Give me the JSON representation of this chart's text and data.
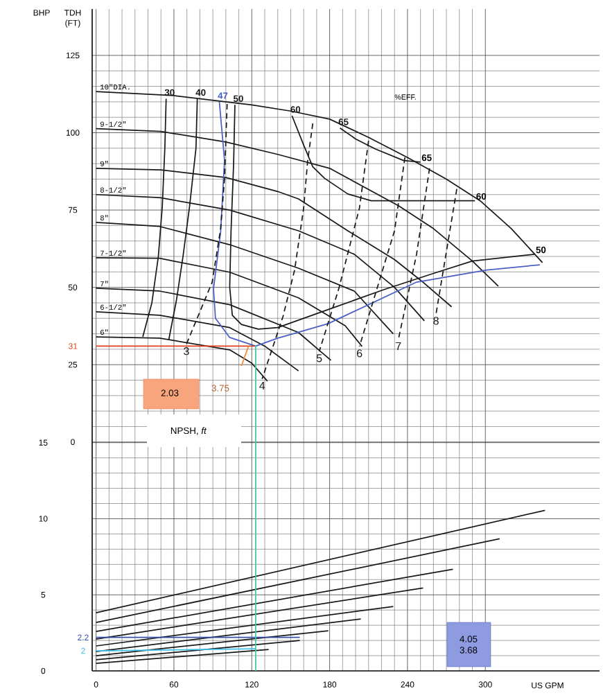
{
  "chart_data": {
    "type": "line",
    "xlabel": "US GPM",
    "ylabel": "TDH (FT)",
    "y2label": "BHP",
    "xlim": [
      -3,
      388
    ],
    "xticks": [
      0,
      60,
      120,
      180,
      240,
      300
    ],
    "ylim": [
      -74,
      140
    ],
    "yticks": [
      0,
      25,
      50,
      75,
      100,
      125
    ],
    "y2lim": [
      0,
      43.5
    ],
    "y2ticks": [
      0,
      5,
      10,
      15
    ],
    "grid": true,
    "series": [
      {
        "name": "10\"DIA.",
        "color": "#1a1a1a",
        "x": [
          0,
          60,
          120,
          150,
          180,
          210,
          240,
          270,
          296,
          320,
          344
        ],
        "values": [
          113.3,
          112,
          109,
          107,
          104.4,
          98.5,
          92,
          85,
          78,
          69,
          58
        ]
      },
      {
        "name": "9-1/2\"",
        "color": "#1a1a1a",
        "x": [
          0,
          50,
          100,
          140,
          180,
          233,
          260,
          290,
          310
        ],
        "values": [
          101.3,
          100.4,
          97,
          93,
          88.5,
          76.4,
          69,
          58.5,
          50.4
        ]
      },
      {
        "name": "9\"",
        "color": "#1a1a1a",
        "x": [
          0,
          50,
          100,
          140,
          156,
          194,
          230,
          251,
          274
        ],
        "values": [
          88.5,
          88,
          85.5,
          81,
          78.6,
          68.3,
          59,
          52,
          43.7
        ]
      },
      {
        "name": "8-1/2\"",
        "color": "#1a1a1a",
        "x": [
          0,
          49,
          103,
          156,
          199,
          230,
          253
        ],
        "values": [
          80,
          79,
          75,
          68.3,
          60.7,
          50,
          39.2
        ]
      },
      {
        "name": "8\"",
        "color": "#1a1a1a",
        "x": [
          0,
          49,
          103,
          156,
          199,
          229
        ],
        "values": [
          71,
          69.7,
          63.8,
          56.2,
          48.8,
          35
        ]
      },
      {
        "name": "7-1/2\"",
        "color": "#1a1a1a",
        "x": [
          0,
          49,
          103,
          156,
          192,
          205
        ],
        "values": [
          59.6,
          59.4,
          54.9,
          46.6,
          37.6,
          30.9
        ]
      },
      {
        "name": "7\"",
        "color": "#1a1a1a",
        "x": [
          0,
          49,
          103,
          156,
          181
        ],
        "values": [
          49.7,
          48.8,
          44.4,
          35.4,
          26.4
        ]
      },
      {
        "name": "6-1/2\"",
        "color": "#1a1a1a",
        "x": [
          0,
          49,
          103,
          130,
          156
        ],
        "values": [
          42.1,
          41,
          37,
          31,
          23
        ]
      },
      {
        "name": "6\"",
        "color": "#1a1a1a",
        "x": [
          0,
          49,
          103,
          120,
          132
        ],
        "values": [
          34,
          33.6,
          29.8,
          25.5,
          19.7
        ]
      },
      {
        "name": "30",
        "color": "#1a1a1a",
        "x": [
          54,
          53,
          51,
          48,
          43,
          36
        ],
        "values": [
          111,
          95,
          76,
          60,
          45,
          34
        ]
      },
      {
        "name": "40",
        "color": "#1a1a1a",
        "x": [
          78,
          77,
          72,
          67,
          62,
          56
        ],
        "values": [
          111,
          95,
          76,
          60,
          46,
          33
        ]
      },
      {
        "name": "50",
        "color": "#1a1a1a",
        "x": [
          107,
          106,
          104,
          103,
          105,
          112,
          125,
          140,
          180,
          222,
          260,
          290,
          338
        ],
        "values": [
          109,
          90,
          68,
          50,
          41,
          38,
          36.5,
          37,
          43,
          49.3,
          54.5,
          58.5,
          60.7
        ]
      },
      {
        "name": "60",
        "color": "#1a1a1a",
        "x": [
          151,
          160,
          167,
          176,
          194,
          212,
          250,
          292
        ],
        "values": [
          105.5,
          96,
          89,
          85.3,
          80.2,
          78,
          78,
          78
        ]
      },
      {
        "name": "65",
        "color": "#1a1a1a",
        "x": [
          188,
          200,
          215,
          237,
          250
        ],
        "values": [
          101.5,
          98,
          94.8,
          91,
          90.5
        ]
      },
      {
        "name": "47",
        "color": "#4a5fc4",
        "x": [
          95,
          99,
          96,
          90.5,
          92,
          103,
          123,
          140,
          156,
          179,
          247,
          301,
          342
        ],
        "values": [
          110,
          91,
          68,
          49.5,
          40,
          33.8,
          31,
          33.6,
          35.5,
          38.3,
          51.7,
          55.6,
          57.3
        ]
      },
      {
        "name": "3",
        "color": "#1a1a1a",
        "line_style": "dashed",
        "x": [
          101,
          99,
          96,
          89.5,
          69.6
        ],
        "values": [
          109.3,
          85.3,
          69,
          51.7,
          31.6
        ]
      },
      {
        "name": "4",
        "color": "#1a1a1a",
        "line_style": "dashed",
        "x": [
          167,
          163,
          160,
          153,
          144,
          128
        ],
        "values": [
          103,
          90.7,
          75.7,
          55.6,
          40.5,
          20.4
        ]
      },
      {
        "name": "5",
        "color": "#1a1a1a",
        "line_style": "dashed",
        "x": [
          210,
          203,
          187,
          172
        ],
        "values": [
          97.4,
          75.7,
          49.5,
          29.3
        ]
      },
      {
        "name": "6",
        "color": "#1a1a1a",
        "line_style": "dashed",
        "x": [
          238,
          230,
          203
        ],
        "values": [
          92,
          68.3,
          30.9
        ]
      },
      {
        "name": "7",
        "color": "#1a1a1a",
        "line_style": "dashed",
        "x": [
          257,
          247,
          233
        ],
        "values": [
          88.5,
          60.7,
          33.2
        ]
      },
      {
        "name": "8",
        "color": "#1a1a1a",
        "line_style": "dashed",
        "x": [
          278,
          262
        ],
        "values": [
          81.8,
          41.4
        ]
      },
      {
        "name": "31",
        "color": "#e0401a",
        "x": [
          0,
          123
        ],
        "values": [
          31,
          31
        ]
      },
      {
        "color": "#f08a30",
        "x": [
          117.5,
          112
        ],
        "values": [
          31,
          24.6
        ]
      },
      {
        "axis": "y2",
        "color": "#1a1a1a",
        "x": [
          0,
          346
        ],
        "values": [
          3.82,
          10.55
        ]
      },
      {
        "axis": "y2",
        "color": "#1a1a1a",
        "x": [
          0,
          311
        ],
        "values": [
          3.18,
          8.68
        ]
      },
      {
        "axis": "y2",
        "color": "#1a1a1a",
        "x": [
          0,
          275
        ],
        "values": [
          2.59,
          6.68
        ]
      },
      {
        "axis": "y2",
        "color": "#1a1a1a",
        "x": [
          0,
          252
        ],
        "values": [
          2.09,
          5.45
        ]
      },
      {
        "axis": "y2",
        "color": "#1a1a1a",
        "x": [
          0,
          229
        ],
        "values": [
          1.64,
          4.23
        ]
      },
      {
        "axis": "y2",
        "color": "#1a1a1a",
        "x": [
          0,
          204
        ],
        "values": [
          1.27,
          3.41
        ]
      },
      {
        "axis": "y2",
        "color": "#1a1a1a",
        "x": [
          0,
          179
        ],
        "values": [
          1.0,
          2.64
        ]
      },
      {
        "axis": "y2",
        "color": "#1a1a1a",
        "x": [
          0,
          157
        ],
        "values": [
          0.73,
          2.0
        ]
      },
      {
        "axis": "y2",
        "color": "#1a1a1a",
        "x": [
          0,
          133
        ],
        "values": [
          0.5,
          1.41
        ]
      },
      {
        "axis": "y2",
        "name": "2.2",
        "color": "#3a4fb0",
        "x": [
          0,
          157
        ],
        "values": [
          2.2,
          2.2
        ]
      },
      {
        "axis": "y2",
        "name": "2",
        "color": "#40c0e8",
        "x": [
          0,
          123
        ],
        "values": [
          1.32,
          1.45
        ]
      },
      {
        "axis": "y2",
        "color": "#40c8a0",
        "x": [
          123,
          123
        ],
        "values": [
          0,
          21.4
        ]
      }
    ],
    "annotations": [
      {
        "text": "65",
        "x": 250,
        "y": 90.5
      },
      {
        "text": "60",
        "x": 292,
        "y": 78
      },
      {
        "text": "50",
        "x": 338,
        "y": 60.7
      },
      "%EFF.",
      "2.03",
      "3.75",
      "NPSH, *ft*",
      "4.05",
      "3.68"
    ]
  }
}
